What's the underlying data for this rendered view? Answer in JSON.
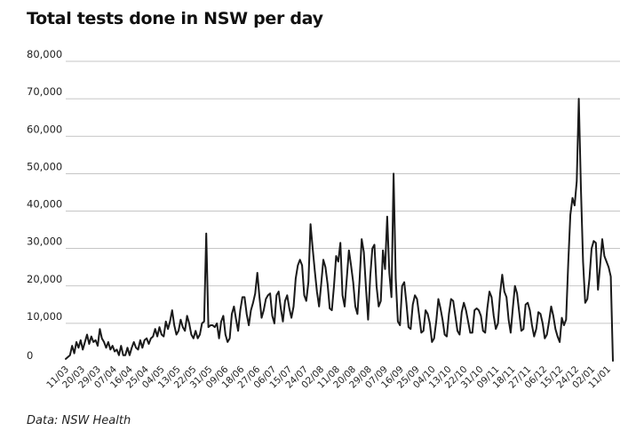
{
  "chart_data": {
    "type": "line",
    "title": "Total tests done in NSW per day",
    "source": "Data: NSW Health",
    "xlabel": "",
    "ylabel": "",
    "ylim": [
      0,
      80000
    ],
    "grid": true,
    "yticks": [
      0,
      10000,
      20000,
      30000,
      40000,
      50000,
      60000,
      70000,
      80000
    ],
    "ytick_labels": [
      "0",
      "10,000",
      "20,000",
      "30,000",
      "40,000",
      "50,000",
      "60,000",
      "70,000",
      "80,000"
    ],
    "xticks": [
      "11/03",
      "20/03",
      "29/03",
      "07/04",
      "16/04",
      "25/04",
      "04/05",
      "13/05",
      "22/05",
      "31/05",
      "09/06",
      "18/06",
      "27/06",
      "06/07",
      "15/07",
      "24/07",
      "02/08",
      "11/08",
      "20/08",
      "29/08",
      "07/09",
      "16/09",
      "25/09",
      "04/10",
      "13/10",
      "22/10",
      "31/10",
      "09/11",
      "18/11",
      "27/11",
      "06/12",
      "15/12",
      "24/12",
      "02/01",
      "11/01"
    ],
    "series": [
      {
        "color": "#1a1a1a",
        "points": [
          [
            0,
            500
          ],
          [
            2,
            1500
          ],
          [
            3,
            4000
          ],
          [
            4,
            2000
          ],
          [
            5,
            5000
          ],
          [
            6,
            3500
          ],
          [
            7,
            5500
          ],
          [
            8,
            3000
          ],
          [
            10,
            7000
          ],
          [
            11,
            4500
          ],
          [
            12,
            6500
          ],
          [
            13,
            5000
          ],
          [
            14,
            5500
          ],
          [
            15,
            4000
          ],
          [
            16,
            8500
          ],
          [
            17,
            6000
          ],
          [
            18,
            5000
          ],
          [
            19,
            3500
          ],
          [
            20,
            5000
          ],
          [
            21,
            3000
          ],
          [
            22,
            4000
          ],
          [
            23,
            2500
          ],
          [
            24,
            3000
          ],
          [
            25,
            1500
          ],
          [
            26,
            4000
          ],
          [
            27,
            1500
          ],
          [
            28,
            1500
          ],
          [
            29,
            3500
          ],
          [
            30,
            1500
          ],
          [
            31,
            3500
          ],
          [
            32,
            5000
          ],
          [
            33,
            3500
          ],
          [
            34,
            3000
          ],
          [
            35,
            5500
          ],
          [
            36,
            3500
          ],
          [
            37,
            5500
          ],
          [
            38,
            6000
          ],
          [
            39,
            4500
          ],
          [
            40,
            6000
          ],
          [
            41,
            6500
          ],
          [
            42,
            8500
          ],
          [
            43,
            6500
          ],
          [
            44,
            9000
          ],
          [
            45,
            7000
          ],
          [
            46,
            6500
          ],
          [
            47,
            10500
          ],
          [
            48,
            8500
          ],
          [
            49,
            10500
          ],
          [
            50,
            13500
          ],
          [
            51,
            9500
          ],
          [
            52,
            7000
          ],
          [
            53,
            8000
          ],
          [
            54,
            11000
          ],
          [
            55,
            9000
          ],
          [
            56,
            8000
          ],
          [
            57,
            12000
          ],
          [
            58,
            10000
          ],
          [
            59,
            7000
          ],
          [
            60,
            6000
          ],
          [
            61,
            8000
          ],
          [
            62,
            6000
          ],
          [
            63,
            7000
          ],
          [
            64,
            10000
          ],
          [
            65,
            10500
          ],
          [
            66,
            34000
          ],
          [
            67,
            9000
          ],
          [
            68,
            9500
          ],
          [
            69,
            9500
          ],
          [
            70,
            9000
          ],
          [
            71,
            10000
          ],
          [
            72,
            6000
          ],
          [
            73,
            10500
          ],
          [
            74,
            12000
          ],
          [
            75,
            7000
          ],
          [
            76,
            5000
          ],
          [
            77,
            6000
          ],
          [
            78,
            12500
          ],
          [
            79,
            14500
          ],
          [
            80,
            11000
          ],
          [
            81,
            8000
          ],
          [
            82,
            13500
          ],
          [
            83,
            17000
          ],
          [
            84,
            17000
          ],
          [
            85,
            12500
          ],
          [
            86,
            9500
          ],
          [
            87,
            13500
          ],
          [
            88,
            15500
          ],
          [
            89,
            18000
          ],
          [
            90,
            23500
          ],
          [
            91,
            17000
          ],
          [
            92,
            11500
          ],
          [
            93,
            13500
          ],
          [
            94,
            16500
          ],
          [
            95,
            17500
          ],
          [
            96,
            18000
          ],
          [
            97,
            12000
          ],
          [
            98,
            10000
          ],
          [
            99,
            17500
          ],
          [
            100,
            18500
          ],
          [
            101,
            14000
          ],
          [
            102,
            10500
          ],
          [
            103,
            16000
          ],
          [
            104,
            17500
          ],
          [
            105,
            14000
          ],
          [
            106,
            11500
          ],
          [
            107,
            14500
          ],
          [
            108,
            22000
          ],
          [
            109,
            25500
          ],
          [
            110,
            27000
          ],
          [
            111,
            25500
          ],
          [
            112,
            17500
          ],
          [
            113,
            16000
          ],
          [
            114,
            21000
          ],
          [
            115,
            36500
          ],
          [
            116,
            30000
          ],
          [
            117,
            24000
          ],
          [
            118,
            18500
          ],
          [
            119,
            14500
          ],
          [
            120,
            20500
          ],
          [
            121,
            27000
          ],
          [
            122,
            25000
          ],
          [
            123,
            20500
          ],
          [
            124,
            14000
          ],
          [
            125,
            13500
          ],
          [
            126,
            20000
          ],
          [
            127,
            28000
          ],
          [
            128,
            26500
          ],
          [
            129,
            31500
          ],
          [
            130,
            17500
          ],
          [
            131,
            14500
          ],
          [
            132,
            22000
          ],
          [
            133,
            29500
          ],
          [
            134,
            25500
          ],
          [
            135,
            21000
          ],
          [
            136,
            14500
          ],
          [
            137,
            12500
          ],
          [
            138,
            21500
          ],
          [
            139,
            32500
          ],
          [
            140,
            29000
          ],
          [
            141,
            19500
          ],
          [
            142,
            11000
          ],
          [
            143,
            22500
          ],
          [
            144,
            30000
          ],
          [
            145,
            31000
          ],
          [
            146,
            20000
          ],
          [
            147,
            14500
          ],
          [
            148,
            16000
          ],
          [
            149,
            29500
          ],
          [
            150,
            24500
          ],
          [
            151,
            38500
          ],
          [
            152,
            23500
          ],
          [
            153,
            17000
          ],
          [
            154,
            50000
          ],
          [
            155,
            22000
          ],
          [
            156,
            10500
          ],
          [
            157,
            9500
          ],
          [
            158,
            20000
          ],
          [
            159,
            21000
          ],
          [
            160,
            15500
          ],
          [
            161,
            9000
          ],
          [
            162,
            8500
          ],
          [
            163,
            15000
          ],
          [
            164,
            17500
          ],
          [
            165,
            16500
          ],
          [
            166,
            12000
          ],
          [
            167,
            7500
          ],
          [
            168,
            8000
          ],
          [
            169,
            13500
          ],
          [
            170,
            12500
          ],
          [
            171,
            10000
          ],
          [
            172,
            5000
          ],
          [
            173,
            6000
          ],
          [
            174,
            10500
          ],
          [
            175,
            16500
          ],
          [
            176,
            14000
          ],
          [
            177,
            11000
          ],
          [
            178,
            7000
          ],
          [
            179,
            6500
          ],
          [
            180,
            12500
          ],
          [
            181,
            16500
          ],
          [
            182,
            16000
          ],
          [
            183,
            12000
          ],
          [
            184,
            8000
          ],
          [
            185,
            7000
          ],
          [
            186,
            13000
          ],
          [
            187,
            15500
          ],
          [
            188,
            13500
          ],
          [
            189,
            10500
          ],
          [
            190,
            7500
          ],
          [
            191,
            7500
          ],
          [
            192,
            13500
          ],
          [
            193,
            14000
          ],
          [
            194,
            13500
          ],
          [
            195,
            12000
          ],
          [
            196,
            8000
          ],
          [
            197,
            7500
          ],
          [
            198,
            14000
          ],
          [
            199,
            18500
          ],
          [
            200,
            17000
          ],
          [
            201,
            12000
          ],
          [
            202,
            8500
          ],
          [
            203,
            10000
          ],
          [
            204,
            18000
          ],
          [
            205,
            23000
          ],
          [
            206,
            18500
          ],
          [
            207,
            17000
          ],
          [
            208,
            11000
          ],
          [
            209,
            7500
          ],
          [
            210,
            14000
          ],
          [
            211,
            20000
          ],
          [
            212,
            18000
          ],
          [
            213,
            13000
          ],
          [
            214,
            8000
          ],
          [
            215,
            8500
          ],
          [
            216,
            15000
          ],
          [
            217,
            15500
          ],
          [
            218,
            13500
          ],
          [
            219,
            9500
          ],
          [
            220,
            6500
          ],
          [
            221,
            8500
          ],
          [
            222,
            13000
          ],
          [
            223,
            12500
          ],
          [
            224,
            10000
          ],
          [
            225,
            6000
          ],
          [
            226,
            7000
          ],
          [
            227,
            10500
          ],
          [
            228,
            14500
          ],
          [
            229,
            12000
          ],
          [
            230,
            8500
          ],
          [
            231,
            6500
          ],
          [
            232,
            5000
          ],
          [
            233,
            11500
          ],
          [
            234,
            9500
          ],
          [
            235,
            11000
          ],
          [
            236,
            26000
          ],
          [
            237,
            39000
          ],
          [
            238,
            43500
          ],
          [
            239,
            41500
          ],
          [
            240,
            48000
          ],
          [
            241,
            70000
          ],
          [
            242,
            46000
          ],
          [
            243,
            26500
          ],
          [
            244,
            15500
          ],
          [
            245,
            16500
          ],
          [
            246,
            22000
          ],
          [
            247,
            30000
          ],
          [
            248,
            32000
          ],
          [
            249,
            31500
          ],
          [
            250,
            19000
          ],
          [
            251,
            25500
          ],
          [
            252,
            32500
          ],
          [
            253,
            28000
          ],
          [
            254,
            26500
          ],
          [
            255,
            25000
          ],
          [
            256,
            22500
          ],
          [
            257,
            0
          ]
        ]
      }
    ]
  }
}
